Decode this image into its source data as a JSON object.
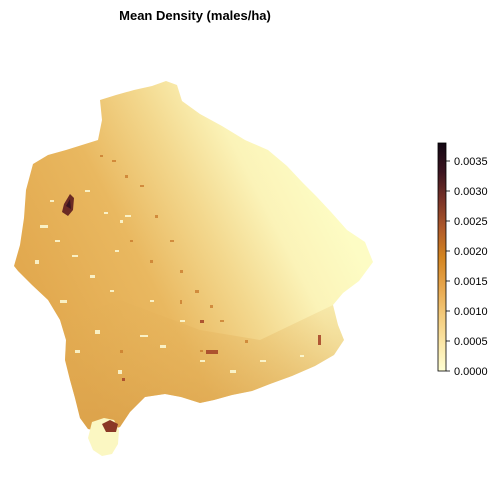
{
  "map": {
    "title": "Mean Density (males/ha)"
  },
  "legend": {
    "min": 0,
    "max": 0.0038,
    "ticks": [
      "0.0000",
      "0.0005",
      "0.0010",
      "0.0015",
      "0.0020",
      "0.0025",
      "0.0030",
      "0.0035"
    ],
    "tick_values": [
      0,
      0.0005,
      0.001,
      0.0015,
      0.002,
      0.0025,
      0.003,
      0.0035
    ],
    "colors": [
      "#ffffd4",
      "#fbe6a6",
      "#f3c979",
      "#e6a44a",
      "#d38420",
      "#b05a2a",
      "#7a3328",
      "#3b1420",
      "#120612"
    ]
  }
}
